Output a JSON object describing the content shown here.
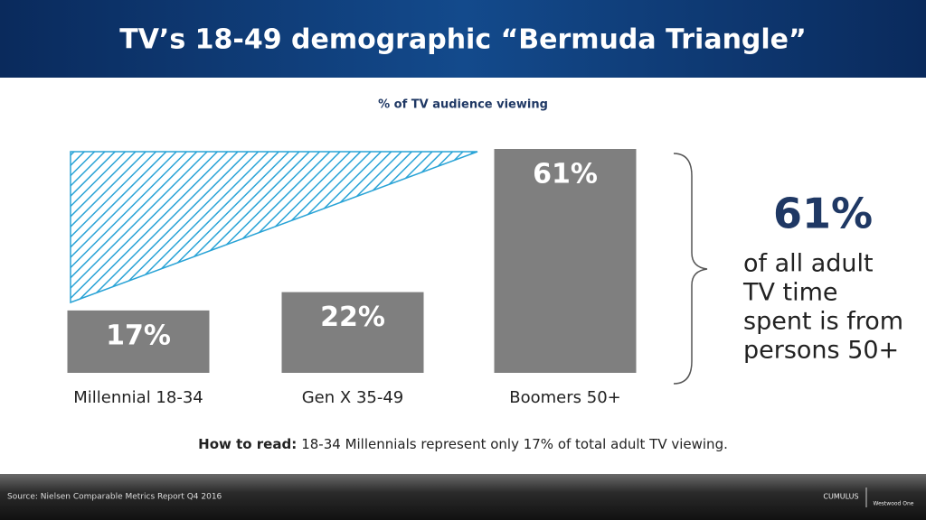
{
  "chart_data": {
    "type": "bar",
    "title": "TV’s 18-49 demographic “Bermuda Triangle”",
    "subtitle": "% of TV audience viewing",
    "categories": [
      "Millennial 18-34",
      "Gen X 35-49",
      "Boomers 50+"
    ],
    "values": [
      17,
      22,
      61
    ],
    "value_labels": [
      "17%",
      "22%",
      "61%"
    ],
    "color": "#7f7f7f",
    "callout": {
      "value": "61%",
      "lines": [
        "of all adult",
        "TV time",
        "spent is from",
        "persons 50+"
      ]
    },
    "how_to_read": {
      "label": "How to read:",
      "text": "18-34 Millennials represent only 17% of total adult TV viewing."
    },
    "source": "Source: Nielsen Comparable  Metrics Report Q4 2016",
    "logos": [
      "CUMULUS",
      "Westwood One"
    ]
  }
}
